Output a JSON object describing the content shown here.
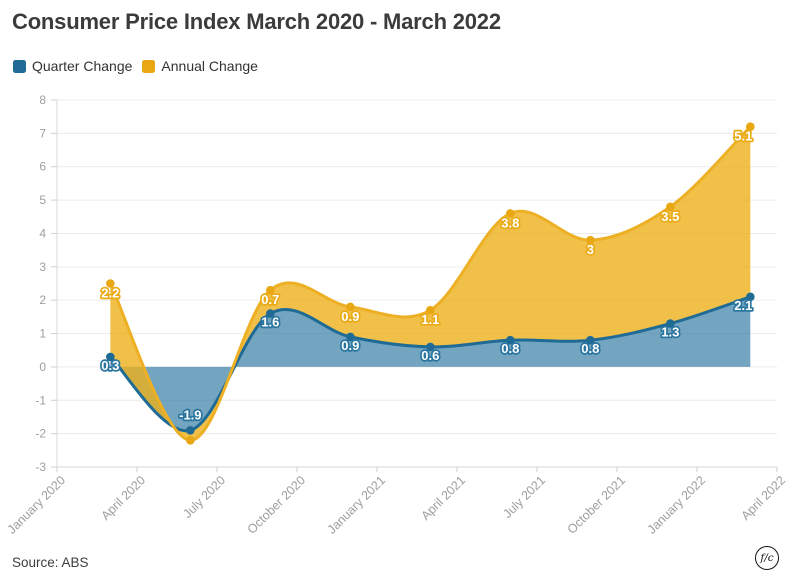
{
  "title": "Consumer Price Index March 2020 - March 2022",
  "legend": {
    "items": [
      {
        "label": "Quarter Change",
        "color": "#1f6b95"
      },
      {
        "label": "Annual Change",
        "color": "#e9a713"
      }
    ]
  },
  "footer": {
    "source": "Source: ABS",
    "logo_text": "f/c"
  },
  "chart_data": {
    "type": "area",
    "stacked": true,
    "title": "Consumer Price Index March 2020 - March 2022",
    "x": [
      "March 2020",
      "June 2020",
      "September 2020",
      "December 2020",
      "March 2021",
      "June 2021",
      "September 2021",
      "December 2021",
      "March 2022"
    ],
    "x_axis_ticks": [
      "January 2020",
      "April 2020",
      "July 2020",
      "October 2020",
      "January 2021",
      "April 2021",
      "July 2021",
      "October 2021",
      "January 2022",
      "April 2022"
    ],
    "y_ticks": [
      8,
      7,
      6,
      5,
      4,
      3,
      2,
      1,
      0,
      -1,
      -2,
      -3
    ],
    "ylim": [
      -3,
      8
    ],
    "grid": true,
    "legend_position": "top-left",
    "series": [
      {
        "name": "Quarter Change",
        "color": "#1f6b95",
        "fill": "rgba(31,110,153,0.62)",
        "values": [
          0.3,
          -1.9,
          1.6,
          0.9,
          0.6,
          0.8,
          0.8,
          1.3,
          2.1
        ],
        "labels": [
          "0.3",
          "-1.9",
          "1.6",
          "0.9",
          "0.6",
          "0.8",
          "0.8",
          "1.3",
          "2.1"
        ]
      },
      {
        "name": "Annual Change",
        "color": "#e9a713",
        "line_color": "#edb024",
        "fill": "rgba(236,176,28,0.80)",
        "values": [
          2.2,
          -0.3,
          0.7,
          0.9,
          1.1,
          3.8,
          3.0,
          3.5,
          5.1
        ],
        "labels": [
          "2.2",
          null,
          "0.7",
          "0.9",
          "1.1",
          "3.8",
          "3",
          "3.5",
          "5.1"
        ]
      }
    ]
  }
}
